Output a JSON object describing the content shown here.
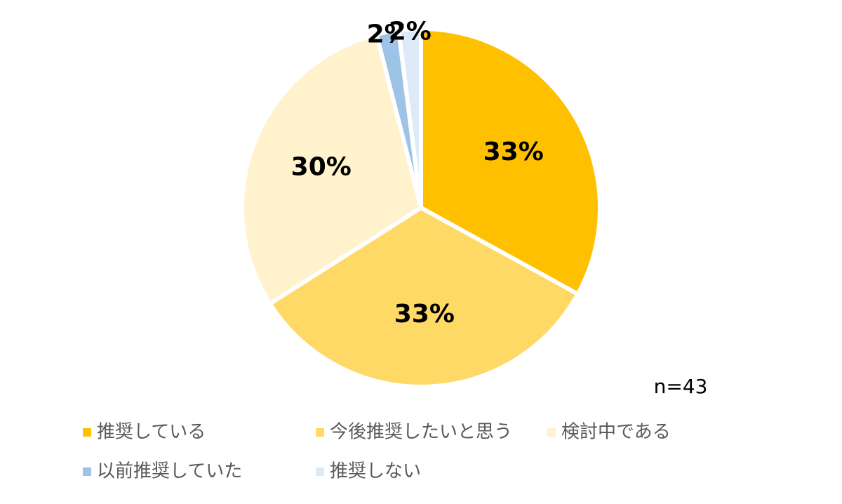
{
  "chart_data": {
    "type": "pie",
    "categories": [
      "推奨している",
      "今後推奨したいと思う",
      "検討中である",
      "以前推奨していた",
      "推奨しない"
    ],
    "values": [
      33,
      33,
      30,
      2,
      2
    ],
    "value_labels": [
      "33%",
      "33%",
      "30%",
      "2%",
      "2%"
    ],
    "colors": [
      "#FFC000",
      "#FFD966",
      "#FFF2CC",
      "#9DC3E6",
      "#DEEBF7"
    ],
    "annotation": "n=43",
    "legend": "bottom"
  }
}
